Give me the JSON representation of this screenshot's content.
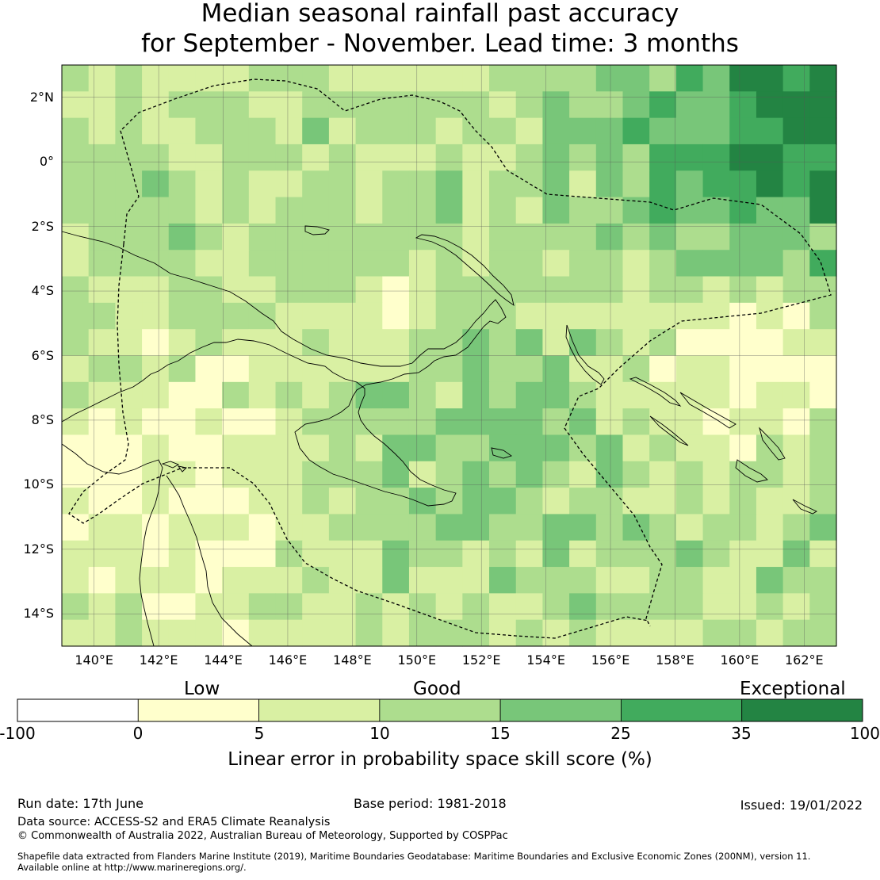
{
  "title_line1": "Median seasonal rainfall past accuracy",
  "title_line2": "for September - November. Lead time: 3 months",
  "map": {
    "lon_range": [
      139,
      163
    ],
    "lat_range": [
      -15,
      3
    ],
    "lat_labels": [
      "2°N",
      "0°",
      "2°S",
      "4°S",
      "6°S",
      "8°S",
      "10°S",
      "12°S",
      "14°S"
    ],
    "lat_values": [
      2,
      0,
      -2,
      -4,
      -6,
      -8,
      -10,
      -12,
      -14
    ],
    "lon_labels": [
      "140°E",
      "142°E",
      "144°E",
      "146°E",
      "148°E",
      "150°E",
      "152°E",
      "154°E",
      "156°E",
      "158°E",
      "160°E",
      "162°E"
    ],
    "lon_values": [
      140,
      142,
      144,
      146,
      148,
      150,
      152,
      154,
      156,
      158,
      160,
      162
    ]
  },
  "colorbar": {
    "category_labels": [
      "Low",
      "Good",
      "Exceptional"
    ],
    "ticks": [
      "-100",
      "0",
      "5",
      "10",
      "15",
      "25",
      "35",
      "100"
    ],
    "colors": [
      "#ffffff",
      "#ffffcc",
      "#d9f0a3",
      "#addd8e",
      "#78c679",
      "#41ab5d",
      "#238443"
    ],
    "title": "Linear error in probability space skill score (%)"
  },
  "footer": {
    "run_date": "Run date: 17th June",
    "base_period": "Base period: 1981-2018",
    "issued": "Issued: 19/01/2022",
    "data_source": "Data source: ACCESS-S2 and ERA5 Climate Reanalysis",
    "copyright": "© Commonwealth of Australia 2022, Australian Bureau of Meteorology, Supported by COSPPac",
    "shapefile_line1": "Shapefile data extracted from Flanders Marine Institute (2019), Maritime Boundaries Geodatabase: Maritime Boundaries and Exclusive Economic Zones (200NM), version 11.",
    "shapefile_line2": "Available online at http://www.marineregions.org/."
  }
}
